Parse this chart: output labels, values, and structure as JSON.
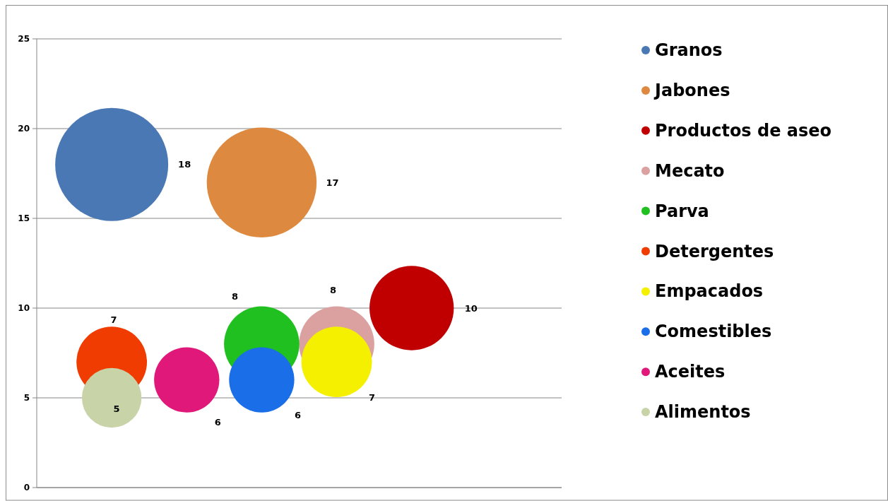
{
  "chart_data": {
    "type": "bubble",
    "categories": [
      null,
      null,
      null,
      null,
      null,
      null,
      null,
      null
    ],
    "ylim": [
      0,
      25
    ],
    "yticks": [
      0,
      5,
      10,
      15,
      20,
      25
    ],
    "grid": "y",
    "legend": "right",
    "data_labels": true,
    "tick_labels": "y",
    "series": [
      {
        "name": "Granos",
        "color": "#4a78b4",
        "values": [
          null,
          18,
          null,
          null,
          null,
          null,
          null,
          null
        ],
        "sizes": [
          null,
          1,
          null,
          null,
          null,
          null,
          null,
          null
        ]
      },
      {
        "name": "Jabones",
        "color": "#dd8a40",
        "values": [
          null,
          null,
          null,
          17,
          null,
          null,
          null,
          null
        ],
        "sizes": [
          null,
          null,
          null,
          0.944,
          null,
          null,
          null,
          null
        ]
      },
      {
        "name": "Productos de aseo",
        "color": "#c00000",
        "values": [
          null,
          null,
          null,
          null,
          null,
          10,
          null,
          null
        ],
        "sizes": [
          null,
          null,
          null,
          null,
          null,
          0.556,
          null,
          null
        ]
      },
      {
        "name": "Mecato",
        "color": "#dba0a0",
        "values": [
          null,
          null,
          null,
          null,
          8,
          null,
          null,
          null
        ],
        "sizes": [
          null,
          null,
          null,
          null,
          0.444,
          null,
          null,
          null
        ]
      },
      {
        "name": "Parva",
        "color": "#20c020",
        "values": [
          null,
          null,
          null,
          8,
          null,
          null,
          null,
          null
        ],
        "sizes": [
          null,
          null,
          null,
          0.444,
          null,
          null,
          null,
          null
        ]
      },
      {
        "name": "Detergentes",
        "color": "#f03c00",
        "values": [
          null,
          7,
          null,
          null,
          null,
          null,
          null,
          null
        ],
        "sizes": [
          null,
          0.389,
          null,
          null,
          null,
          null,
          null,
          null
        ]
      },
      {
        "name": "Empacados",
        "color": "#f5f000",
        "values": [
          null,
          null,
          null,
          null,
          7,
          null,
          null,
          null
        ],
        "sizes": [
          null,
          null,
          null,
          null,
          0.389,
          null,
          null,
          null
        ]
      },
      {
        "name": "Comestibles",
        "color": "#1a6ee8",
        "values": [
          null,
          null,
          null,
          6,
          null,
          null,
          null,
          null
        ],
        "sizes": [
          null,
          null,
          null,
          0.333,
          null,
          null,
          null,
          null
        ]
      },
      {
        "name": "Aceites",
        "color": "#e0187a",
        "values": [
          null,
          null,
          6,
          null,
          null,
          null,
          null,
          null
        ],
        "sizes": [
          null,
          null,
          0.333,
          null,
          null,
          null,
          null,
          null
        ]
      },
      {
        "name": "Alimentos",
        "color": "#c8d4a8",
        "values": [
          null,
          5,
          null,
          null,
          null,
          null,
          null,
          null
        ],
        "sizes": [
          null,
          0.278,
          null,
          null,
          null,
          null,
          null,
          null
        ]
      }
    ]
  }
}
